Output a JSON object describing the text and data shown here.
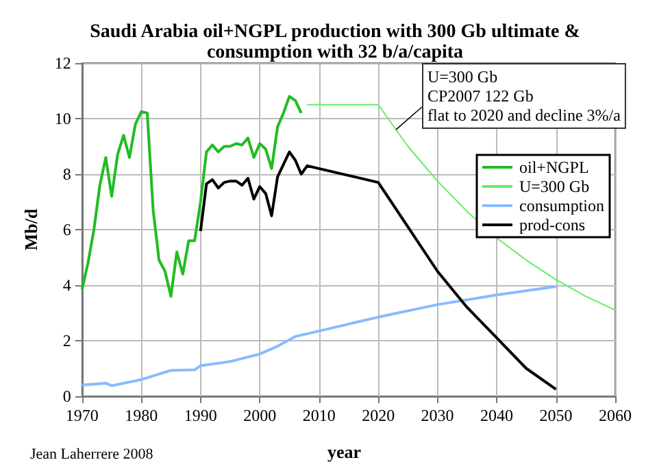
{
  "chart_data": {
    "type": "line",
    "title": "Saudi Arabia oil+NGPL production with 300 Gb ultimate &\nconsumption with 32 b/a/capita",
    "xlabel": "year",
    "ylabel": "Mb/d",
    "annotations": [
      {
        "text": "U=300 Gb\nCP2007 122 Gb\nflat to 2020 and decline 3%/a",
        "x": 2023,
        "y": 9.6
      },
      "Jean Laherrere 2008"
    ],
    "xlim": [
      1970,
      2060
    ],
    "xticks": [
      1970,
      1980,
      1990,
      2000,
      2010,
      2020,
      2030,
      2040,
      2050,
      2060
    ],
    "ylim": [
      0,
      12
    ],
    "yticks": [
      0,
      2,
      4,
      6,
      8,
      10,
      12
    ],
    "grid": true,
    "legend": "right",
    "marker": "none",
    "line_style": "solid",
    "series": [
      {
        "name": "oil+NGPL",
        "color": "#22bb22",
        "x": [
          1970,
          1971,
          1972,
          1973,
          1974,
          1975,
          1976,
          1977,
          1978,
          1979,
          1980,
          1981,
          1982,
          1983,
          1984,
          1985,
          1986,
          1987,
          1988,
          1989,
          1990,
          1991,
          1992,
          1993,
          1994,
          1995,
          1996,
          1997,
          1998,
          1999,
          2000,
          2001,
          2002,
          2003,
          2004,
          2005,
          2006,
          2007
        ],
        "values": [
          3.85,
          4.8,
          6.0,
          7.6,
          8.6,
          7.2,
          8.7,
          9.4,
          8.6,
          9.8,
          10.25,
          10.2,
          6.7,
          4.9,
          4.5,
          3.6,
          5.2,
          4.4,
          5.6,
          5.6,
          7.0,
          8.8,
          9.05,
          8.8,
          9.0,
          9.0,
          9.1,
          9.05,
          9.3,
          8.6,
          9.1,
          8.9,
          8.2,
          9.7,
          10.2,
          10.8,
          10.65,
          10.2
        ]
      },
      {
        "name": "U=300 Gb",
        "color": "#66ee66",
        "x": [
          2008,
          2020,
          2025,
          2030,
          2035,
          2040,
          2045,
          2050,
          2055,
          2060
        ],
        "values": [
          10.5,
          10.5,
          9.0,
          7.75,
          6.65,
          5.7,
          4.9,
          4.2,
          3.6,
          3.1
        ]
      },
      {
        "name": "consumption",
        "color": "#88bbff",
        "x": [
          1970,
          1974,
          1975,
          1980,
          1985,
          1989,
          1990,
          1995,
          2000,
          2003,
          2006,
          2010,
          2020,
          2030,
          2040,
          2050
        ],
        "values": [
          0.4,
          0.47,
          0.38,
          0.6,
          0.93,
          0.95,
          1.1,
          1.25,
          1.52,
          1.8,
          2.15,
          2.35,
          2.85,
          3.3,
          3.65,
          3.95
        ]
      },
      {
        "name": "prod-cons",
        "color": "#000000",
        "x": [
          1990,
          1991,
          1992,
          1993,
          1994,
          1995,
          1996,
          1997,
          1998,
          1999,
          2000,
          2001,
          2002,
          2003,
          2004,
          2005,
          2006,
          2007,
          2008,
          2020,
          2025,
          2030,
          2035,
          2040,
          2045,
          2050
        ],
        "values": [
          5.95,
          7.65,
          7.8,
          7.5,
          7.7,
          7.75,
          7.75,
          7.6,
          7.85,
          7.1,
          7.55,
          7.3,
          6.5,
          7.9,
          8.35,
          8.8,
          8.5,
          8.0,
          8.3,
          7.7,
          6.1,
          4.5,
          3.2,
          2.1,
          1.0,
          0.25
        ]
      }
    ]
  }
}
